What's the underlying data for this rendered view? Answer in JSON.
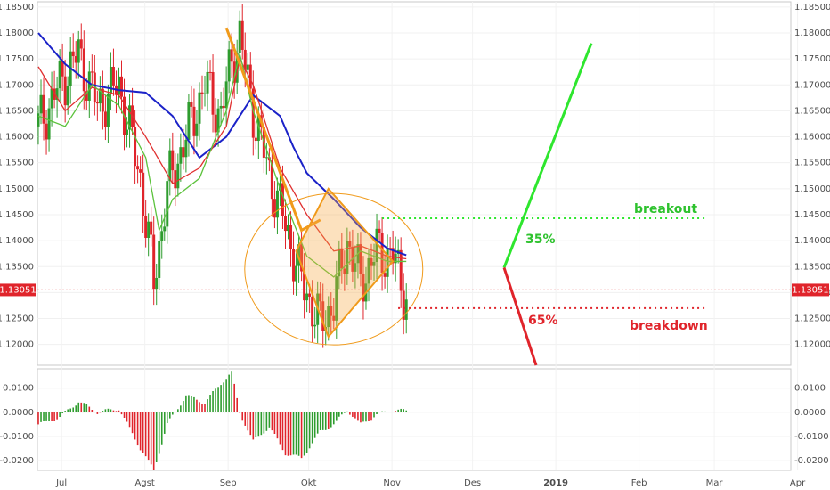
{
  "chart_data": [
    {
      "type": "candlestick",
      "title": "",
      "ylim": [
        1.116,
        1.186
      ],
      "y_ticks": [
        "1.18500",
        "1.18000",
        "1.17500",
        "1.17000",
        "1.16500",
        "1.16000",
        "1.15500",
        "1.15000",
        "1.14500",
        "1.14000",
        "1.13500",
        "1.13000",
        "1.12500",
        "1.12000"
      ],
      "x_ticks": [
        "Jul",
        "Agst",
        "Sep",
        "Okt",
        "Nov",
        "Des",
        "2019",
        "Feb",
        "Mar",
        "Apr"
      ],
      "current_price": 1.13051,
      "current_price_label": "1.13051",
      "colors": {
        "up": "#2e9c2e",
        "down": "#e0242b",
        "ma_blue": "#1b22c8",
        "ma_red": "#e03030",
        "ma_green": "#5cc23c",
        "pattern": "#f09a1a",
        "breakout": "#2ee62e",
        "breakdown": "#e0242b"
      },
      "series": [
        {
          "name": "",
          "kind": "ma_blue",
          "x": [
            0,
            10,
            20,
            30,
            40,
            50,
            60,
            70,
            80,
            90,
            95,
            100,
            110,
            120,
            130,
            137
          ],
          "y": [
            1.18,
            1.174,
            1.17,
            1.169,
            1.1685,
            1.164,
            1.156,
            1.16,
            1.168,
            1.164,
            1.158,
            1.153,
            1.148,
            1.1425,
            1.1385,
            1.1372
          ]
        },
        {
          "name": "",
          "kind": "ma_red",
          "x": [
            0,
            10,
            20,
            30,
            40,
            50,
            60,
            70,
            75,
            80,
            90,
            100,
            110,
            120,
            130,
            137
          ],
          "y": [
            1.1735,
            1.165,
            1.1695,
            1.168,
            1.16,
            1.151,
            1.154,
            1.162,
            1.175,
            1.17,
            1.154,
            1.145,
            1.138,
            1.139,
            1.137,
            1.1365
          ]
        },
        {
          "name": "",
          "kind": "ma_green",
          "x": [
            0,
            10,
            20,
            30,
            40,
            45,
            50,
            60,
            70,
            75,
            80,
            90,
            100,
            110,
            120,
            130,
            137
          ],
          "y": [
            1.164,
            1.162,
            1.17,
            1.166,
            1.156,
            1.142,
            1.148,
            1.152,
            1.165,
            1.176,
            1.165,
            1.15,
            1.137,
            1.133,
            1.138,
            1.136,
            1.136
          ]
        }
      ],
      "candles_anchor": {
        "x": [
          0,
          8,
          15,
          22,
          30,
          38,
          43,
          48,
          55,
          62,
          68,
          72,
          75,
          80,
          86,
          92,
          98,
          105,
          110,
          115,
          120,
          126,
          132,
          137
        ],
        "y": [
          1.162,
          1.17,
          1.176,
          1.166,
          1.17,
          1.152,
          1.132,
          1.15,
          1.16,
          1.17,
          1.164,
          1.175,
          1.179,
          1.165,
          1.153,
          1.143,
          1.132,
          1.124,
          1.128,
          1.14,
          1.132,
          1.138,
          1.137,
          1.129
        ]
      },
      "annotations": [
        {
          "text": "breakout",
          "value": 1.1443,
          "pct": "35%"
        },
        {
          "text": "breakdown",
          "value": 1.127,
          "pct": "65%"
        }
      ]
    },
    {
      "type": "bar",
      "title": "",
      "ylim": [
        -0.024,
        0.018
      ],
      "y_ticks": [
        "0.0100",
        "0.0000",
        "-0.0100",
        "-0.0200"
      ],
      "x": [
        0,
        8,
        15,
        22,
        30,
        38,
        43,
        48,
        55,
        62,
        68,
        72,
        75,
        80,
        86,
        92,
        98,
        105,
        110,
        115,
        120,
        126,
        132,
        137
      ],
      "values": [
        -0.005,
        -0.002,
        0.0045,
        0.0,
        0.0015,
        -0.015,
        -0.024,
        -0.005,
        0.007,
        0.004,
        0.012,
        0.0165,
        0.0,
        -0.012,
        -0.006,
        -0.017,
        -0.019,
        -0.008,
        -0.005,
        0.001,
        -0.005,
        -0.001,
        0.001,
        0.0005
      ]
    }
  ]
}
